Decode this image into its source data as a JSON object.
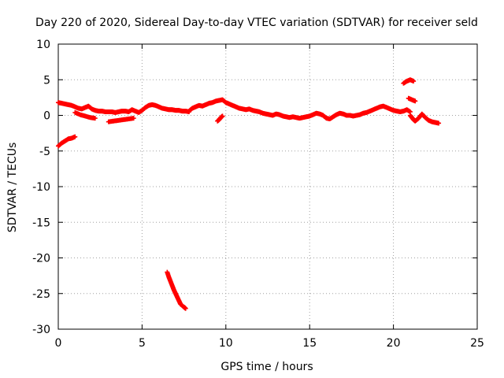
{
  "chart_data": {
    "type": "scatter",
    "title": "Day 220 of 2020, Sidereal Day-to-day VTEC variation (SDTVAR) for receiver seld",
    "xlabel": "GPS time / hours",
    "ylabel": "SDTVAR / TECUs",
    "xlim": [
      0,
      25
    ],
    "ylim": [
      -30,
      10
    ],
    "xticks": [
      0,
      5,
      10,
      15,
      20,
      25
    ],
    "yticks": [
      10,
      5,
      0,
      -5,
      -10,
      -15,
      -20,
      -25,
      -30
    ],
    "grid": true,
    "marker": "+",
    "series": [
      {
        "name": "SDTVAR",
        "color": "#ff0000",
        "segments": [
          {
            "x": [
              0.0,
              0.2,
              0.4,
              0.6,
              0.8,
              1.0,
              1.2,
              1.4,
              1.6,
              1.8,
              2.0,
              2.2,
              2.4,
              2.6,
              2.8,
              3.0,
              3.2,
              3.4,
              3.6,
              3.8,
              4.0,
              4.2,
              4.4,
              4.6,
              4.8,
              5.0,
              5.2,
              5.4,
              5.6,
              5.8,
              6.0,
              6.2,
              6.4,
              6.6,
              6.8,
              7.0,
              7.2,
              7.4,
              7.6,
              7.8
            ],
            "y": [
              1.8,
              1.7,
              1.6,
              1.5,
              1.4,
              1.2,
              1.0,
              0.9,
              1.1,
              1.3,
              0.9,
              0.7,
              0.6,
              0.6,
              0.5,
              0.5,
              0.5,
              0.4,
              0.5,
              0.6,
              0.6,
              0.5,
              0.8,
              0.6,
              0.4,
              0.7,
              1.1,
              1.4,
              1.5,
              1.4,
              1.2,
              1.0,
              0.9,
              0.8,
              0.8,
              0.7,
              0.7,
              0.6,
              0.6,
              0.5
            ]
          },
          {
            "x": [
              1.0,
              1.3,
              1.6,
              1.9,
              2.2
            ],
            "y": [
              0.4,
              0.1,
              -0.1,
              -0.3,
              -0.4
            ]
          },
          {
            "x": [
              3.0,
              3.3,
              3.6,
              3.9,
              4.2,
              4.5
            ],
            "y": [
              -0.9,
              -0.8,
              -0.7,
              -0.6,
              -0.5,
              -0.4
            ]
          },
          {
            "x": [
              7.8,
              8.0,
              8.2,
              8.4,
              8.6,
              8.8,
              9.0,
              9.2,
              9.4,
              9.6,
              9.8,
              10.0,
              10.2,
              10.4,
              10.6,
              10.8,
              11.0,
              11.2,
              11.4,
              11.6,
              11.8,
              12.0,
              12.2,
              12.4,
              12.6,
              12.8,
              13.0,
              13.2,
              13.4,
              13.6,
              13.8,
              14.0,
              14.2,
              14.4,
              14.6,
              14.8,
              15.0,
              15.2,
              15.4,
              15.6,
              15.8
            ],
            "y": [
              0.6,
              1.0,
              1.2,
              1.4,
              1.3,
              1.5,
              1.7,
              1.8,
              2.0,
              2.1,
              2.2,
              1.8,
              1.6,
              1.4,
              1.2,
              1.0,
              0.9,
              0.8,
              0.9,
              0.7,
              0.6,
              0.5,
              0.3,
              0.2,
              0.1,
              0.0,
              0.2,
              0.1,
              -0.1,
              -0.2,
              -0.3,
              -0.2,
              -0.3,
              -0.4,
              -0.3,
              -0.2,
              -0.1,
              0.1,
              0.3,
              0.2,
              0.0
            ]
          },
          {
            "x": [
              9.5,
              9.6,
              9.7,
              9.8
            ],
            "y": [
              -0.8,
              -0.6,
              -0.3,
              -0.1
            ]
          },
          {
            "x": [
              15.8,
              16.0,
              16.2,
              16.4,
              16.6,
              16.8,
              17.0,
              17.2,
              17.4,
              17.6,
              17.8,
              18.0,
              18.2,
              18.4,
              18.6,
              18.8,
              19.0,
              19.2,
              19.4,
              19.6,
              19.8,
              20.0,
              20.2,
              20.4,
              20.6,
              20.8,
              21.0
            ],
            "y": [
              0.0,
              -0.4,
              -0.5,
              -0.2,
              0.1,
              0.3,
              0.2,
              0.0,
              0.0,
              -0.1,
              0.0,
              0.1,
              0.3,
              0.4,
              0.6,
              0.8,
              1.0,
              1.2,
              1.3,
              1.1,
              0.9,
              0.7,
              0.6,
              0.5,
              0.6,
              0.8,
              0.5
            ]
          },
          {
            "x": [
              20.6,
              20.8,
              21.0,
              21.2
            ],
            "y": [
              4.5,
              4.8,
              5.0,
              4.8
            ]
          },
          {
            "x": [
              20.9,
              21.1,
              21.3
            ],
            "y": [
              2.4,
              2.2,
              2.0
            ]
          },
          {
            "x": [
              21.0,
              21.1,
              21.2,
              21.3,
              21.5,
              21.7,
              21.9,
              22.1,
              22.3,
              22.5,
              22.7
            ],
            "y": [
              0.0,
              -0.3,
              -0.6,
              -0.8,
              -0.4,
              0.2,
              -0.3,
              -0.7,
              -0.9,
              -1.0,
              -1.1
            ]
          },
          {
            "x": [
              0.0,
              0.2,
              0.4,
              0.6,
              0.8,
              1.0
            ],
            "y": [
              -4.3,
              -3.9,
              -3.6,
              -3.3,
              -3.2,
              -3.0
            ]
          },
          {
            "x": [
              6.5,
              6.6,
              6.7,
              6.8,
              6.9,
              7.0,
              7.1,
              7.2,
              7.3,
              7.5,
              7.6
            ],
            "y": [
              -22.0,
              -22.7,
              -23.3,
              -23.9,
              -24.5,
              -25.0,
              -25.5,
              -26.0,
              -26.5,
              -26.9,
              -27.1
            ]
          }
        ]
      }
    ]
  }
}
